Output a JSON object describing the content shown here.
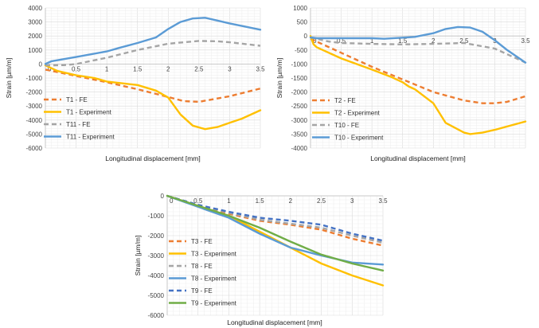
{
  "chart_data": [
    {
      "type": "line",
      "xlabel": "Longitudinal displacement [mm]",
      "ylabel": "Strain [µm/m]",
      "xlim": [
        0,
        3.5
      ],
      "ylim": [
        -6000,
        4000
      ],
      "xticks": [
        "0",
        "0.5",
        "1",
        "1.5",
        "2",
        "2.5",
        "3",
        "3.5"
      ],
      "yticks": [
        "4000",
        "3000",
        "2000",
        "1000",
        "0",
        "-1000",
        "-2000",
        "-3000",
        "-4000",
        "-5000",
        "-6000"
      ],
      "grid": true,
      "legend_position": "left",
      "series": [
        {
          "name": "T1 - FE",
          "color": "#ED7D31",
          "dash": "dashed",
          "x": [
            0,
            0.5,
            1,
            1.5,
            2,
            2.25,
            2.5,
            3,
            3.5
          ],
          "y": [
            -400,
            -850,
            -1300,
            -1800,
            -2350,
            -2650,
            -2700,
            -2300,
            -1750
          ]
        },
        {
          "name": "T1 - Experiment",
          "color": "#FFC000",
          "dash": "solid",
          "x": [
            0,
            0.2,
            0.5,
            0.8,
            1,
            1.2,
            1.5,
            1.8,
            2,
            2.2,
            2.4,
            2.6,
            2.8,
            3,
            3.2,
            3.5
          ],
          "y": [
            -100,
            -500,
            -800,
            -1000,
            -1250,
            -1350,
            -1500,
            -1900,
            -2400,
            -3600,
            -4400,
            -4650,
            -4500,
            -4200,
            -3900,
            -3300
          ]
        },
        {
          "name": "T11 - FE",
          "color": "#A5A5A5",
          "dash": "dashed",
          "x": [
            0,
            0.3,
            0.5,
            1,
            1.5,
            2,
            2.5,
            2.8,
            3,
            3.5
          ],
          "y": [
            -100,
            -80,
            0,
            450,
            1000,
            1450,
            1650,
            1620,
            1550,
            1300
          ]
        },
        {
          "name": "T11 - Experiment",
          "color": "#5B9BD5",
          "dash": "solid",
          "x": [
            0,
            0.1,
            0.5,
            1,
            1.2,
            1.5,
            1.8,
            2,
            2.2,
            2.4,
            2.6,
            2.8,
            3,
            3.5
          ],
          "y": [
            0,
            200,
            500,
            900,
            1150,
            1500,
            1900,
            2500,
            3000,
            3250,
            3300,
            3100,
            2900,
            2450
          ]
        }
      ]
    },
    {
      "type": "line",
      "xlabel": "Longitudinal displacement [mm]",
      "ylabel": "Strain [µm/m]",
      "xlim": [
        0,
        3.5
      ],
      "ylim": [
        -4000,
        1000
      ],
      "xticks": [
        "0",
        "0.5",
        "1",
        "1.5",
        "2",
        "2.5",
        "3",
        "3.5"
      ],
      "yticks": [
        "1000",
        "500",
        "0",
        "-500",
        "-1000",
        "-1500",
        "-2000",
        "-2500",
        "-3000",
        "-3500",
        "-4000"
      ],
      "grid": true,
      "legend_position": "left",
      "series": [
        {
          "name": "T2 - FE",
          "color": "#ED7D31",
          "dash": "dashed",
          "x": [
            0,
            0.5,
            1,
            1.5,
            2,
            2.5,
            2.8,
            3,
            3.2,
            3.5
          ],
          "y": [
            -100,
            -600,
            -1100,
            -1550,
            -2000,
            -2300,
            -2400,
            -2400,
            -2350,
            -2150
          ]
        },
        {
          "name": "T2 - Experiment",
          "color": "#FFC000",
          "dash": "solid",
          "x": [
            0,
            0.05,
            0.1,
            0.5,
            1,
            1.3,
            1.5,
            1.6,
            1.7,
            2,
            2.2,
            2.5,
            2.6,
            2.8,
            3,
            3.5
          ],
          "y": [
            0,
            -300,
            -400,
            -800,
            -1200,
            -1450,
            -1650,
            -1800,
            -1900,
            -2400,
            -3100,
            -3450,
            -3500,
            -3450,
            -3350,
            -3050
          ]
        },
        {
          "name": "T10 - FE",
          "color": "#A5A5A5",
          "dash": "dashed",
          "x": [
            0,
            0.3,
            0.5,
            1,
            1.5,
            2,
            2.5,
            2.7,
            3,
            3.2,
            3.5
          ],
          "y": [
            -50,
            -200,
            -250,
            -280,
            -300,
            -280,
            -250,
            -330,
            -450,
            -650,
            -950
          ]
        },
        {
          "name": "T10 - Experiment",
          "color": "#5B9BD5",
          "dash": "solid",
          "x": [
            0,
            0.1,
            0.5,
            1,
            1.2,
            1.5,
            1.7,
            2,
            2.2,
            2.4,
            2.6,
            2.8,
            3,
            3.2,
            3.5
          ],
          "y": [
            -50,
            -80,
            -80,
            -80,
            -100,
            -60,
            -30,
            100,
            250,
            320,
            300,
            150,
            -150,
            -500,
            -950
          ]
        }
      ]
    },
    {
      "type": "line",
      "xlabel": "Longitudinal displacement [mm]",
      "ylabel": "Strain [µm/m]",
      "xlim": [
        0,
        3.5
      ],
      "ylim": [
        -6000,
        0
      ],
      "xticks": [
        "0",
        "0.5",
        "1",
        "1.5",
        "2",
        "2.5",
        "3",
        "3.5"
      ],
      "yticks": [
        "0",
        "-1000",
        "-2000",
        "-3000",
        "-4000",
        "-5000",
        "-6000"
      ],
      "grid": true,
      "legend_position": "left",
      "series": [
        {
          "name": "T3 - FE",
          "color": "#ED7D31",
          "dash": "dashed",
          "x": [
            0,
            0.5,
            1,
            1.5,
            2,
            2.5,
            3,
            3.5
          ],
          "y": [
            0,
            -500,
            -900,
            -1250,
            -1450,
            -1700,
            -2150,
            -2500
          ]
        },
        {
          "name": "T3 - Experiment",
          "color": "#FFC000",
          "dash": "solid",
          "x": [
            0,
            0.5,
            1,
            1.5,
            2,
            2.5,
            3,
            3.5
          ],
          "y": [
            0,
            -500,
            -1000,
            -1800,
            -2600,
            -3400,
            -4000,
            -4500
          ]
        },
        {
          "name": "T8 - FE",
          "color": "#A5A5A5",
          "dash": "dashed",
          "x": [
            0,
            0.5,
            1,
            1.5,
            2,
            2.5,
            3,
            3.5
          ],
          "y": [
            0,
            -450,
            -850,
            -1200,
            -1400,
            -1600,
            -2000,
            -2350
          ]
        },
        {
          "name": "T8 - Experiment",
          "color": "#5B9BD5",
          "dash": "solid",
          "x": [
            0,
            0.5,
            1,
            1.5,
            2,
            2.5,
            3,
            3.5
          ],
          "y": [
            0,
            -550,
            -1100,
            -1900,
            -2600,
            -3000,
            -3350,
            -3450
          ]
        },
        {
          "name": "T9 - FE",
          "color": "#4472C4",
          "dash": "dashed",
          "x": [
            0,
            0.5,
            1,
            1.5,
            2,
            2.5,
            3,
            3.5
          ],
          "y": [
            0,
            -450,
            -800,
            -1100,
            -1250,
            -1450,
            -1900,
            -2250
          ]
        },
        {
          "name": "T9 - Experiment",
          "color": "#70AD47",
          "dash": "solid",
          "x": [
            0,
            0.5,
            1,
            1.5,
            2,
            2.5,
            3,
            3.5
          ],
          "y": [
            0,
            -500,
            -1000,
            -1600,
            -2300,
            -2950,
            -3400,
            -3750
          ]
        }
      ]
    }
  ]
}
